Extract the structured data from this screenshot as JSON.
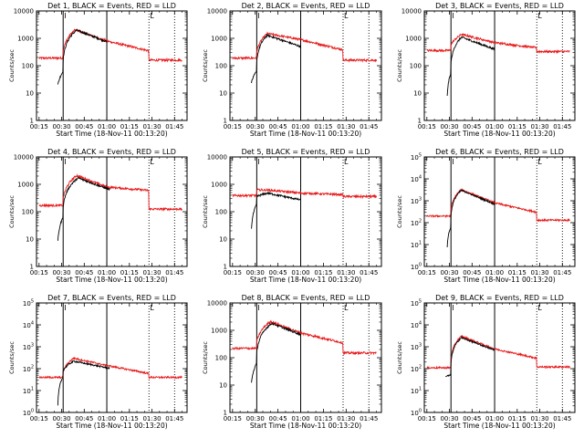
{
  "colors": {
    "events": "#000000",
    "lld": "#e8191a",
    "axis": "#000000"
  },
  "xaxis": {
    "ticks": [
      "00:15",
      "00:30",
      "00:45",
      "01:00",
      "01:15",
      "01:30",
      "01:45"
    ],
    "tick_minutes": [
      15,
      30,
      45,
      60,
      75,
      90,
      105
    ],
    "range_minutes": [
      13.3,
      113.3
    ],
    "label": "Start Time (18-Nov-11 00:13:20)"
  },
  "ylabel": "Counts/sec",
  "vlines": {
    "solid_minutes": [
      31,
      60
    ],
    "dotted_minutes": [
      88,
      105
    ],
    "corner_marks": [
      {
        "minute": 31,
        "text": "I"
      },
      {
        "minute": 88,
        "text": "L"
      }
    ]
  },
  "panels": [
    {
      "title": "Det 1, BLACK = Events, RED = LLD",
      "yscale": "log",
      "ylim": [
        1,
        10000
      ],
      "tick_style": "plain",
      "yticks": [
        "1",
        "10",
        "100",
        "1000",
        "10000"
      ],
      "events": {
        "start": 27.5,
        "pre": [
          20,
          60
        ],
        "jump": 30.8,
        "peak_t": 40,
        "peak": 2000,
        "t60": 750,
        "end": 60,
        "after": []
      },
      "lld": {
        "pre": 190,
        "jump": 30.8,
        "peak_t": 39,
        "peak": 2050,
        "t60": 800,
        "t88": 350,
        "post": 160,
        "end": 110
      }
    },
    {
      "title": "Det 2, BLACK = Events, RED = LLD",
      "yscale": "log",
      "ylim": [
        1,
        10000
      ],
      "tick_style": "plain",
      "yticks": [
        "1",
        "10",
        "100",
        "1000",
        "10000"
      ],
      "events": {
        "start": 27.5,
        "pre": [
          25,
          60
        ],
        "jump": 30.8,
        "peak_t": 38,
        "peak": 1300,
        "t60": 500,
        "end": 60,
        "after": []
      },
      "lld": {
        "pre": 190,
        "jump": 30.8,
        "peak_t": 38,
        "peak": 1500,
        "t60": 900,
        "t88": 380,
        "post": 160,
        "end": 110
      }
    },
    {
      "title": "Det 3, BLACK = Events, RED = LLD",
      "yscale": "log",
      "ylim": [
        1,
        10000
      ],
      "tick_style": "plain",
      "yticks": [
        "1",
        "10",
        "100",
        "1000",
        "10000"
      ],
      "events": {
        "start": 28.5,
        "pre": [
          8,
          50
        ],
        "jump": 30.8,
        "peak_t": 38,
        "peak": 1100,
        "t60": 400,
        "end": 60,
        "after": []
      },
      "lld": {
        "pre": 360,
        "jump": 30.8,
        "peak_t": 38,
        "peak": 1400,
        "t60": 700,
        "t88": 450,
        "post": 330,
        "end": 110
      }
    },
    {
      "title": "Det 4, BLACK = Events, RED = LLD",
      "yscale": "log",
      "ylim": [
        1,
        10000
      ],
      "tick_style": "plain",
      "yticks": [
        "1",
        "10",
        "100",
        "1000",
        "10000"
      ],
      "events": {
        "start": 27.5,
        "pre": [
          8,
          60
        ],
        "jump": 30.8,
        "peak_t": 41,
        "peak": 1700,
        "t60": 700,
        "end": 62,
        "after": []
      },
      "lld": {
        "pre": 170,
        "jump": 30.8,
        "peak_t": 40,
        "peak": 2100,
        "t60": 800,
        "t88": 600,
        "post": 125,
        "end": 110
      }
    },
    {
      "title": "Det 5, BLACK = Events, RED = LLD",
      "yscale": "log",
      "ylim": [
        1,
        10000
      ],
      "tick_style": "plain",
      "yticks": [
        "1",
        "10",
        "100",
        "1000",
        "10000"
      ],
      "events": {
        "start": 27.5,
        "pre": [
          25,
          180
        ],
        "jump": 30.8,
        "peak_t": 38,
        "peak": 480,
        "t60": 270,
        "end": 60,
        "after": []
      },
      "lld": {
        "pre": 390,
        "jump": 30.8,
        "peak_t": 38,
        "peak": 620,
        "t60": 480,
        "t88": 420,
        "post": 360,
        "end": 110
      }
    },
    {
      "title": "Det 6, BLACK = Events, RED = LLD",
      "yscale": "log",
      "ylim": [
        1,
        100000
      ],
      "tick_style": "power",
      "yticks": [
        "10^0",
        "10^1",
        "10^2",
        "10^3",
        "10^4",
        "10^5"
      ],
      "events": {
        "start": 28.5,
        "pre": [
          8,
          60
        ],
        "jump": 30.8,
        "peak_t": 38,
        "peak": 3000,
        "t60": 700,
        "end": 60,
        "after": []
      },
      "lld": {
        "pre": 200,
        "jump": 30.8,
        "peak_t": 38,
        "peak": 3200,
        "t60": 800,
        "t88": 300,
        "post": 130,
        "end": 110
      }
    },
    {
      "title": "Det 7, BLACK = Events, RED = LLD",
      "yscale": "log",
      "ylim": [
        1,
        100000
      ],
      "tick_style": "power",
      "yticks": [
        "10^0",
        "10^1",
        "10^2",
        "10^3",
        "10^4",
        "10^5"
      ],
      "events": {
        "start": 27.5,
        "pre": [
          2,
          40
        ],
        "jump": 30.8,
        "peak_t": 38,
        "peak": 220,
        "t60": 110,
        "end": 62,
        "after": []
      },
      "lld": {
        "pre": 40,
        "jump": 30.8,
        "peak_t": 38,
        "peak": 300,
        "t60": 140,
        "t88": 60,
        "post": 40,
        "end": 110
      }
    },
    {
      "title": "Det 8, BLACK = Events, RED = LLD",
      "yscale": "log",
      "ylim": [
        1,
        10000
      ],
      "tick_style": "plain",
      "yticks": [
        "1",
        "10",
        "100",
        "1000",
        "10000"
      ],
      "events": {
        "start": 27.5,
        "pre": [
          12,
          60
        ],
        "jump": 30.8,
        "peak_t": 41,
        "peak": 1800,
        "t60": 700,
        "end": 60,
        "after": []
      },
      "lld": {
        "pre": 220,
        "jump": 30.8,
        "peak_t": 40,
        "peak": 2100,
        "t60": 800,
        "t88": 350,
        "post": 150,
        "end": 110
      }
    },
    {
      "title": "Det 9, BLACK = Events, RED = LLD",
      "yscale": "log",
      "ylim": [
        1,
        100000
      ],
      "tick_style": "power",
      "yticks": [
        "10^0",
        "10^1",
        "10^2",
        "10^3",
        "10^4",
        "10^5"
      ],
      "events": {
        "start": 27.5,
        "pre": [
          45,
          50
        ],
        "jump": 30.8,
        "peak_t": 38,
        "peak": 2600,
        "t60": 700,
        "end": 60,
        "after": []
      },
      "lld": {
        "pre": 110,
        "jump": 30.8,
        "peak_t": 38,
        "peak": 3000,
        "t60": 800,
        "t88": 300,
        "post": 120,
        "end": 110
      }
    }
  ],
  "chart_data": [
    {
      "type": "line",
      "title": "Det 1, BLACK = Events, RED = LLD",
      "xlabel": "Start Time (18-Nov-11 00:13:20)",
      "ylabel": "Counts/sec",
      "ylim": [
        1,
        10000
      ],
      "yscale": "log",
      "series": [
        {
          "name": "Events",
          "x": [
            "00:28",
            "00:31",
            "00:40",
            "01:00"
          ],
          "values": [
            20,
            60,
            2000,
            750
          ]
        },
        {
          "name": "LLD",
          "x": [
            "00:15",
            "00:31",
            "00:39",
            "01:00",
            "01:28",
            "01:50"
          ],
          "values": [
            190,
            190,
            2050,
            800,
            350,
            160
          ]
        }
      ]
    },
    {
      "type": "line",
      "title": "Det 2, BLACK = Events, RED = LLD",
      "xlabel": "Start Time (18-Nov-11 00:13:20)",
      "ylabel": "Counts/sec",
      "ylim": [
        1,
        10000
      ],
      "yscale": "log",
      "series": [
        {
          "name": "Events",
          "x": [
            "00:28",
            "00:31",
            "00:38",
            "01:00"
          ],
          "values": [
            25,
            60,
            1300,
            500
          ]
        },
        {
          "name": "LLD",
          "x": [
            "00:15",
            "00:31",
            "00:38",
            "01:00",
            "01:28",
            "01:50"
          ],
          "values": [
            190,
            190,
            1500,
            900,
            380,
            160
          ]
        }
      ]
    },
    {
      "type": "line",
      "title": "Det 3, BLACK = Events, RED = LLD",
      "xlabel": "Start Time (18-Nov-11 00:13:20)",
      "ylabel": "Counts/sec",
      "ylim": [
        1,
        10000
      ],
      "yscale": "log",
      "series": [
        {
          "name": "Events",
          "x": [
            "00:29",
            "00:31",
            "00:38",
            "01:00"
          ],
          "values": [
            8,
            50,
            1100,
            400
          ]
        },
        {
          "name": "LLD",
          "x": [
            "00:15",
            "00:31",
            "00:38",
            "01:00",
            "01:28",
            "01:50"
          ],
          "values": [
            360,
            360,
            1400,
            700,
            450,
            330
          ]
        }
      ]
    },
    {
      "type": "line",
      "title": "Det 4, BLACK = Events, RED = LLD",
      "xlabel": "Start Time (18-Nov-11 00:13:20)",
      "ylabel": "Counts/sec",
      "ylim": [
        1,
        10000
      ],
      "yscale": "log",
      "series": [
        {
          "name": "Events",
          "x": [
            "00:28",
            "00:31",
            "00:41",
            "01:02"
          ],
          "values": [
            8,
            60,
            1700,
            700
          ]
        },
        {
          "name": "LLD",
          "x": [
            "00:15",
            "00:31",
            "00:40",
            "01:00",
            "01:28",
            "01:50"
          ],
          "values": [
            170,
            170,
            2100,
            800,
            600,
            125
          ]
        }
      ]
    },
    {
      "type": "line",
      "title": "Det 5, BLACK = Events, RED = LLD",
      "xlabel": "Start Time (18-Nov-11 00:13:20)",
      "ylabel": "Counts/sec",
      "ylim": [
        1,
        10000
      ],
      "yscale": "log",
      "series": [
        {
          "name": "Events",
          "x": [
            "00:28",
            "00:31",
            "00:38",
            "01:00"
          ],
          "values": [
            25,
            180,
            480,
            270
          ]
        },
        {
          "name": "LLD",
          "x": [
            "00:15",
            "00:31",
            "00:38",
            "01:00",
            "01:28",
            "01:50"
          ],
          "values": [
            390,
            390,
            620,
            480,
            420,
            360
          ]
        }
      ]
    },
    {
      "type": "line",
      "title": "Det 6, BLACK = Events, RED = LLD",
      "xlabel": "Start Time (18-Nov-11 00:13:20)",
      "ylabel": "Counts/sec",
      "ylim": [
        1,
        100000
      ],
      "yscale": "log",
      "series": [
        {
          "name": "Events",
          "x": [
            "00:29",
            "00:31",
            "00:38",
            "01:00"
          ],
          "values": [
            8,
            60,
            3000,
            700
          ]
        },
        {
          "name": "LLD",
          "x": [
            "00:15",
            "00:31",
            "00:38",
            "01:00",
            "01:28",
            "01:50"
          ],
          "values": [
            200,
            200,
            3200,
            800,
            300,
            130
          ]
        }
      ]
    },
    {
      "type": "line",
      "title": "Det 7, BLACK = Events, RED = LLD",
      "xlabel": "Start Time (18-Nov-11 00:13:20)",
      "ylabel": "Counts/sec",
      "ylim": [
        1,
        100000
      ],
      "yscale": "log",
      "series": [
        {
          "name": "Events",
          "x": [
            "00:28",
            "00:31",
            "00:38",
            "01:02"
          ],
          "values": [
            2,
            40,
            220,
            110
          ]
        },
        {
          "name": "LLD",
          "x": [
            "00:15",
            "00:31",
            "00:38",
            "01:00",
            "01:28",
            "01:50"
          ],
          "values": [
            40,
            40,
            300,
            140,
            60,
            40
          ]
        }
      ]
    },
    {
      "type": "line",
      "title": "Det 8, BLACK = Events, RED = LLD",
      "xlabel": "Start Time (18-Nov-11 00:13:20)",
      "ylabel": "Counts/sec",
      "ylim": [
        1,
        10000
      ],
      "yscale": "log",
      "series": [
        {
          "name": "Events",
          "x": [
            "00:28",
            "00:31",
            "00:41",
            "01:00"
          ],
          "values": [
            12,
            60,
            1800,
            700
          ]
        },
        {
          "name": "LLD",
          "x": [
            "00:15",
            "00:31",
            "00:40",
            "01:00",
            "01:28",
            "01:50"
          ],
          "values": [
            220,
            220,
            2100,
            800,
            350,
            150
          ]
        }
      ]
    },
    {
      "type": "line",
      "title": "Det 9, BLACK = Events, RED = LLD",
      "xlabel": "Start Time (18-Nov-11 00:13:20)",
      "ylabel": "Counts/sec",
      "ylim": [
        1,
        100000
      ],
      "yscale": "log",
      "series": [
        {
          "name": "Events",
          "x": [
            "00:28",
            "00:31",
            "00:38",
            "01:00"
          ],
          "values": [
            45,
            50,
            2600,
            700
          ]
        },
        {
          "name": "LLD",
          "x": [
            "00:15",
            "00:31",
            "00:38",
            "01:00",
            "01:28",
            "01:50"
          ],
          "values": [
            110,
            110,
            3000,
            800,
            300,
            120
          ]
        }
      ]
    }
  ]
}
